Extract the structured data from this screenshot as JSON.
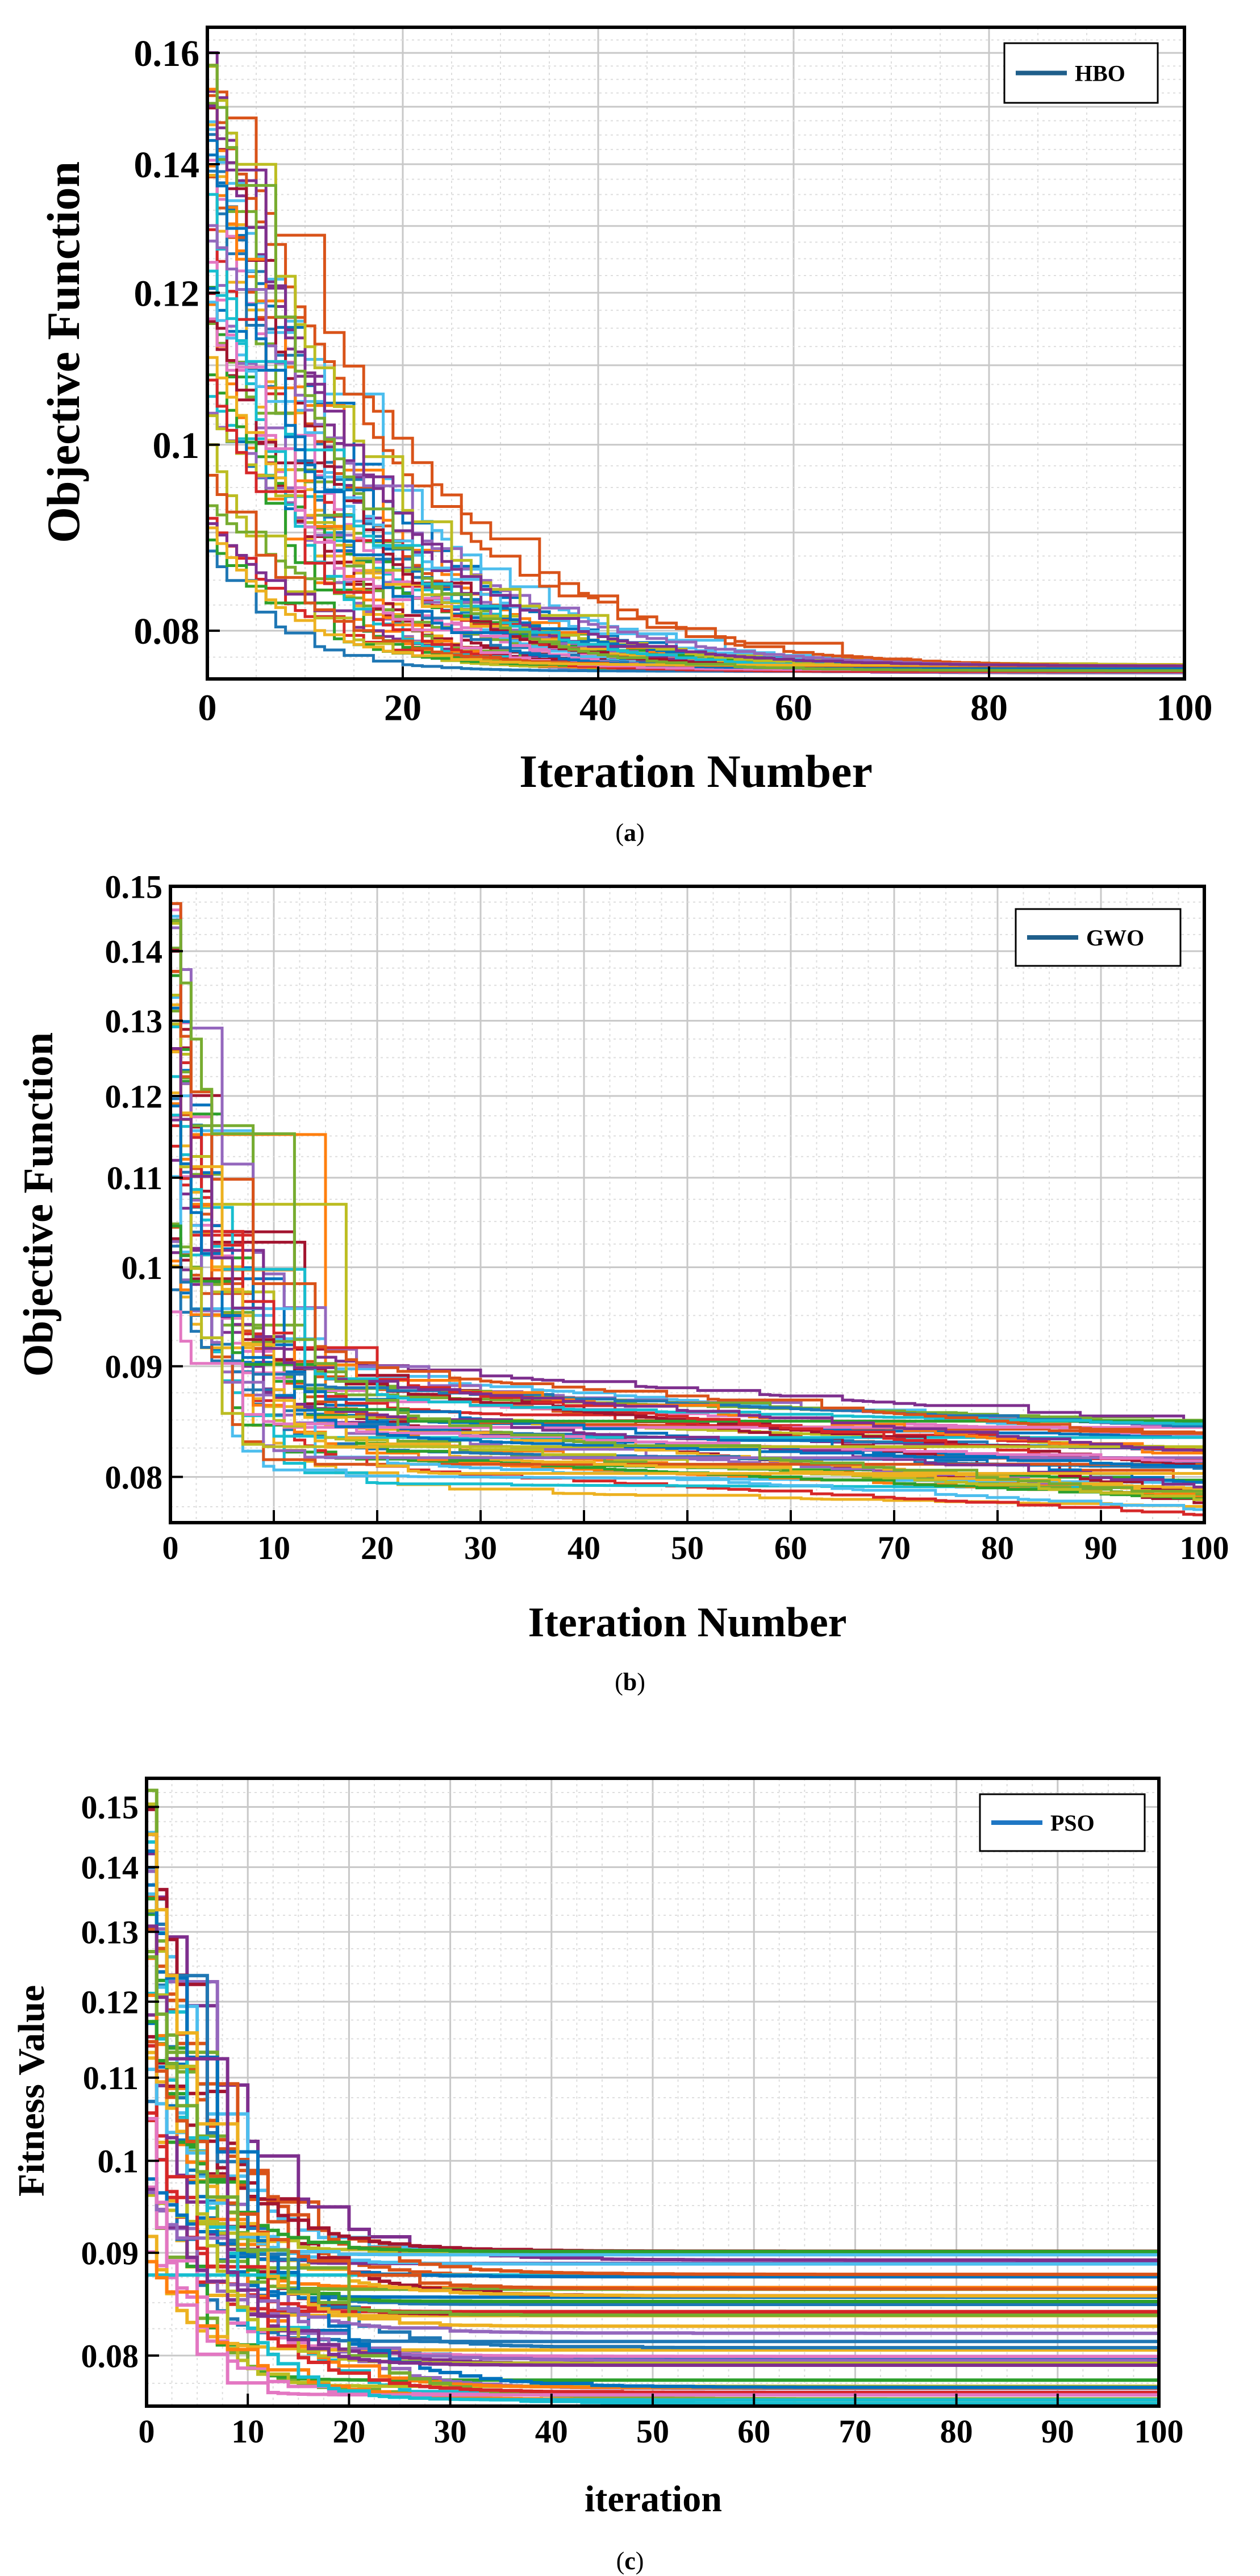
{
  "chart_data": [
    {
      "type": "line",
      "panel": "(a)",
      "caption_letter": "a",
      "title": "",
      "xlabel": "Iteration Number",
      "ylabel": "Objective Function",
      "xlim": [
        0,
        100
      ],
      "ylim": [
        0.0755,
        0.165
      ],
      "y_scale": "log",
      "x_ticks": [
        "0",
        "20",
        "40",
        "60",
        "80",
        "100"
      ],
      "y_ticks": [
        "0.08",
        "0.1",
        "0.12",
        "0.14",
        "0.16"
      ],
      "grid": true,
      "legend": "top-right",
      "legend_label": "HBO",
      "legend_color": "#1f5f8b",
      "n_runs": 50,
      "final_value": 0.0762,
      "series_summary": {
        "start_min": 0.085,
        "start_max": 0.165,
        "converged_by_iteration": 45
      }
    },
    {
      "type": "line",
      "panel": "(b)",
      "caption_letter": "b",
      "title": "",
      "xlabel": "Iteration Number",
      "ylabel": "Objective Function",
      "xlim": [
        0,
        100
      ],
      "ylim": [
        0.0762,
        0.15
      ],
      "y_scale": "log",
      "x_ticks": [
        "0",
        "10",
        "20",
        "30",
        "40",
        "50",
        "60",
        "70",
        "80",
        "90",
        "100"
      ],
      "y_ticks": [
        "0.08",
        "0.09",
        "0.1",
        "0.11",
        "0.12",
        "0.13",
        "0.14",
        "0.15"
      ],
      "grid": true,
      "legend": "top-right",
      "legend_label": "GWO",
      "legend_color": "#1f5f8b",
      "n_runs": 50,
      "final_value_range": [
        0.076,
        0.085
      ],
      "series_summary": {
        "start_max": 0.15,
        "plateau_range": [
          0.079,
          0.091
        ]
      }
    },
    {
      "type": "line",
      "panel": "(c)",
      "caption_letter": "c",
      "title": "",
      "xlabel": "iteration",
      "ylabel": "Fitness Value",
      "xlim": [
        0,
        100
      ],
      "ylim": [
        0.0755,
        0.155
      ],
      "y_scale": "log",
      "x_ticks": [
        "0",
        "10",
        "20",
        "30",
        "40",
        "50",
        "60",
        "70",
        "80",
        "90",
        "100"
      ],
      "y_ticks": [
        "0.08",
        "0.09",
        "0.1",
        "0.11",
        "0.12",
        "0.13",
        "0.14",
        "0.15"
      ],
      "grid": true,
      "legend": "top-right",
      "legend_label": "PSO",
      "legend_color": "#1f77c4",
      "n_runs": 50,
      "final_value_range": [
        0.0755,
        0.0905
      ],
      "series_summary": {
        "start_max": 0.152,
        "plateau_range": [
          0.0755,
          0.0905
        ]
      }
    }
  ]
}
